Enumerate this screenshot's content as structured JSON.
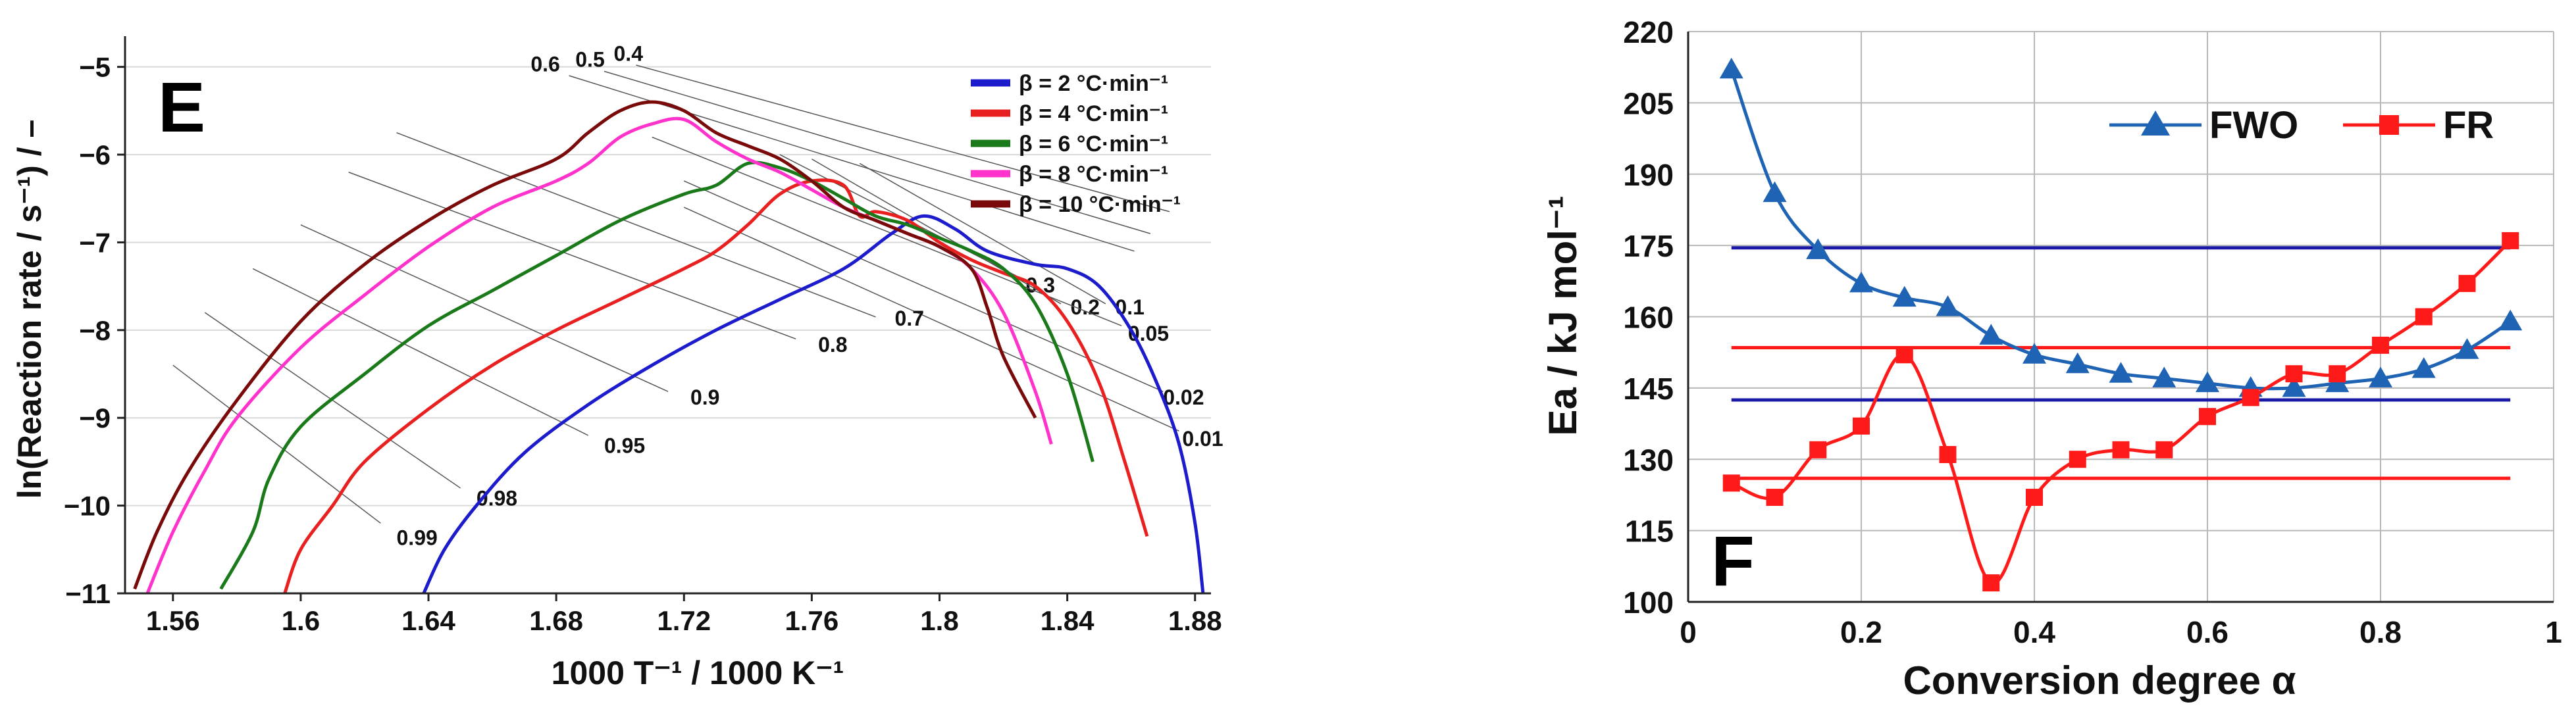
{
  "chart_data": [
    {
      "type": "line",
      "panel_label": "E",
      "xlabel": "1000 T⁻¹ / 1000 K⁻¹",
      "ylabel": "ln(Reaction rate / s⁻¹) / –",
      "xlim": [
        1.545,
        1.885
      ],
      "ylim": [
        -11,
        -4.65
      ],
      "x_ticks": [
        1.56,
        1.6,
        1.64,
        1.68,
        1.72,
        1.76,
        1.8,
        1.84,
        1.88
      ],
      "x_tick_labels": [
        "1.56",
        "1.6",
        "1.64",
        "1.68",
        "1.72",
        "1.76",
        "1.8",
        "1.84",
        "1.88"
      ],
      "y_ticks": [
        -11,
        -10,
        -9,
        -8,
        -7,
        -6,
        -5
      ],
      "y_tick_labels": [
        "−11",
        "−10",
        "−9",
        "−8",
        "−7",
        "−6",
        "−5"
      ],
      "grid": "horizontal",
      "legend_position": "top-right",
      "series": [
        {
          "name": "β = 2 °C·min⁻¹",
          "color": "#1c1ccc",
          "points": [
            [
              1.6385,
              -11
            ],
            [
              1.645,
              -10.5
            ],
            [
              1.655,
              -10.0
            ],
            [
              1.67,
              -9.4
            ],
            [
              1.69,
              -8.85
            ],
            [
              1.71,
              -8.4
            ],
            [
              1.73,
              -8.0
            ],
            [
              1.75,
              -7.65
            ],
            [
              1.77,
              -7.3
            ],
            [
              1.785,
              -6.9
            ],
            [
              1.795,
              -6.7
            ],
            [
              1.805,
              -6.85
            ],
            [
              1.815,
              -7.1
            ],
            [
              1.83,
              -7.25
            ],
            [
              1.84,
              -7.3
            ],
            [
              1.85,
              -7.5
            ],
            [
              1.86,
              -8.0
            ],
            [
              1.868,
              -8.6
            ],
            [
              1.875,
              -9.3
            ],
            [
              1.88,
              -10.2
            ],
            [
              1.8825,
              -11
            ]
          ]
        },
        {
          "name": "β = 4 °C·min⁻¹",
          "color": "#e82020",
          "points": [
            [
              1.595,
              -11
            ],
            [
              1.6,
              -10.5
            ],
            [
              1.61,
              -10.0
            ],
            [
              1.62,
              -9.5
            ],
            [
              1.64,
              -8.9
            ],
            [
              1.66,
              -8.4
            ],
            [
              1.68,
              -8.0
            ],
            [
              1.7,
              -7.65
            ],
            [
              1.72,
              -7.3
            ],
            [
              1.73,
              -7.1
            ],
            [
              1.74,
              -6.8
            ],
            [
              1.75,
              -6.45
            ],
            [
              1.76,
              -6.3
            ],
            [
              1.77,
              -6.35
            ],
            [
              1.775,
              -6.7
            ],
            [
              1.78,
              -6.65
            ],
            [
              1.79,
              -6.75
            ],
            [
              1.8,
              -7.0
            ],
            [
              1.81,
              -7.2
            ],
            [
              1.82,
              -7.35
            ],
            [
              1.83,
              -7.5
            ],
            [
              1.84,
              -7.9
            ],
            [
              1.85,
              -8.6
            ],
            [
              1.858,
              -9.5
            ],
            [
              1.865,
              -10.35
            ]
          ]
        },
        {
          "name": "β = 6 °C·min⁻¹",
          "color": "#1a7a1a",
          "points": [
            [
              1.575,
              -10.95
            ],
            [
              1.585,
              -10.3
            ],
            [
              1.59,
              -9.7
            ],
            [
              1.6,
              -9.1
            ],
            [
              1.62,
              -8.5
            ],
            [
              1.64,
              -7.95
            ],
            [
              1.66,
              -7.55
            ],
            [
              1.68,
              -7.15
            ],
            [
              1.7,
              -6.75
            ],
            [
              1.72,
              -6.45
            ],
            [
              1.73,
              -6.35
            ],
            [
              1.74,
              -6.1
            ],
            [
              1.75,
              -6.15
            ],
            [
              1.76,
              -6.3
            ],
            [
              1.77,
              -6.5
            ],
            [
              1.78,
              -6.7
            ],
            [
              1.79,
              -6.8
            ],
            [
              1.8,
              -6.95
            ],
            [
              1.81,
              -7.1
            ],
            [
              1.82,
              -7.3
            ],
            [
              1.83,
              -7.7
            ],
            [
              1.84,
              -8.5
            ],
            [
              1.848,
              -9.5
            ]
          ]
        },
        {
          "name": "β = 8 °C·min⁻¹",
          "color": "#ff33cc",
          "points": [
            [
              1.552,
              -11
            ],
            [
              1.56,
              -10.3
            ],
            [
              1.57,
              -9.6
            ],
            [
              1.58,
              -9.0
            ],
            [
              1.6,
              -8.2
            ],
            [
              1.62,
              -7.6
            ],
            [
              1.64,
              -7.05
            ],
            [
              1.66,
              -6.6
            ],
            [
              1.68,
              -6.3
            ],
            [
              1.69,
              -6.1
            ],
            [
              1.7,
              -5.8
            ],
            [
              1.71,
              -5.65
            ],
            [
              1.72,
              -5.6
            ],
            [
              1.73,
              -5.85
            ],
            [
              1.74,
              -6.05
            ],
            [
              1.75,
              -6.2
            ],
            [
              1.76,
              -6.4
            ],
            [
              1.77,
              -6.6
            ],
            [
              1.78,
              -6.75
            ],
            [
              1.79,
              -6.9
            ],
            [
              1.8,
              -7.05
            ],
            [
              1.81,
              -7.3
            ],
            [
              1.82,
              -7.8
            ],
            [
              1.83,
              -8.7
            ],
            [
              1.835,
              -9.3
            ]
          ]
        },
        {
          "name": "β = 10 °C·min⁻¹",
          "color": "#7a0a0a",
          "points": [
            [
              1.548,
              -10.95
            ],
            [
              1.555,
              -10.3
            ],
            [
              1.565,
              -9.6
            ],
            [
              1.58,
              -8.8
            ],
            [
              1.6,
              -7.9
            ],
            [
              1.62,
              -7.25
            ],
            [
              1.64,
              -6.75
            ],
            [
              1.66,
              -6.35
            ],
            [
              1.68,
              -6.05
            ],
            [
              1.69,
              -5.75
            ],
            [
              1.7,
              -5.5
            ],
            [
              1.71,
              -5.4
            ],
            [
              1.72,
              -5.5
            ],
            [
              1.73,
              -5.75
            ],
            [
              1.74,
              -5.9
            ],
            [
              1.75,
              -6.05
            ],
            [
              1.76,
              -6.3
            ],
            [
              1.77,
              -6.6
            ],
            [
              1.78,
              -6.75
            ],
            [
              1.79,
              -6.9
            ],
            [
              1.8,
              -7.05
            ],
            [
              1.81,
              -7.3
            ],
            [
              1.815,
              -7.75
            ],
            [
              1.82,
              -8.3
            ],
            [
              1.83,
              -9.0
            ]
          ]
        }
      ],
      "iso_lines": [
        {
          "label": "0.4",
          "from": [
            1.705,
            -4.98
          ],
          "to": [
            1.872,
            -6.65
          ],
          "label_at": [
            1.698,
            -4.93
          ]
        },
        {
          "label": "0.5",
          "from": [
            1.695,
            -5.05
          ],
          "to": [
            1.866,
            -6.9
          ],
          "label_at": [
            1.686,
            -5.0
          ]
        },
        {
          "label": "0.6",
          "from": [
            1.684,
            -5.1
          ],
          "to": [
            1.861,
            -7.1
          ],
          "label_at": [
            1.672,
            -5.05
          ]
        },
        {
          "label": "0.3",
          "from": [
            1.75,
            -6.0
          ],
          "to": [
            1.825,
            -7.4
          ],
          "label_at": [
            1.827,
            -7.57
          ]
        },
        {
          "label": "0.2",
          "from": [
            1.76,
            -6.05
          ],
          "to": [
            1.838,
            -7.7
          ],
          "label_at": [
            1.841,
            -7.82
          ]
        },
        {
          "label": "0.1",
          "from": [
            1.775,
            -6.1
          ],
          "to": [
            1.852,
            -7.7
          ],
          "label_at": [
            1.855,
            -7.82
          ]
        },
        {
          "label": "0.05",
          "from": [
            1.71,
            -5.8
          ],
          "to": [
            1.857,
            -7.95
          ],
          "label_at": [
            1.859,
            -8.12
          ]
        },
        {
          "label": "0.02",
          "from": [
            1.72,
            -6.3
          ],
          "to": [
            1.87,
            -8.7
          ],
          "label_at": [
            1.87,
            -8.85
          ]
        },
        {
          "label": "0.01",
          "from": [
            1.72,
            -6.6
          ],
          "to": [
            1.875,
            -9.15
          ],
          "label_at": [
            1.876,
            -9.32
          ]
        },
        {
          "label": "0.7",
          "from": [
            1.63,
            -5.75
          ],
          "to": [
            1.78,
            -7.85
          ],
          "label_at": [
            1.786,
            -7.95
          ]
        },
        {
          "label": "0.8",
          "from": [
            1.615,
            -6.2
          ],
          "to": [
            1.755,
            -8.1
          ],
          "label_at": [
            1.762,
            -8.25
          ]
        },
        {
          "label": "0.9",
          "from": [
            1.6,
            -6.8
          ],
          "to": [
            1.715,
            -8.7
          ],
          "label_at": [
            1.722,
            -8.85
          ]
        },
        {
          "label": "0.95",
          "from": [
            1.585,
            -7.3
          ],
          "to": [
            1.69,
            -9.2
          ],
          "label_at": [
            1.695,
            -9.4
          ]
        },
        {
          "label": "0.98",
          "from": [
            1.57,
            -7.8
          ],
          "to": [
            1.65,
            -9.8
          ],
          "label_at": [
            1.655,
            -10.0
          ]
        },
        {
          "label": "0.99",
          "from": [
            1.56,
            -8.4
          ],
          "to": [
            1.625,
            -10.2
          ],
          "label_at": [
            1.63,
            -10.45
          ]
        }
      ]
    },
    {
      "type": "line",
      "panel_label": "F",
      "xlabel": "Conversion degree α",
      "ylabel": "Ea / kJ mol⁻¹",
      "xlim": [
        0,
        1
      ],
      "ylim": [
        100,
        220
      ],
      "x_ticks": [
        0,
        0.2,
        0.4,
        0.6,
        0.8,
        1
      ],
      "x_tick_labels": [
        "0",
        "0.2",
        "0.4",
        "0.6",
        "0.8",
        "1"
      ],
      "y_ticks": [
        100,
        115,
        130,
        145,
        160,
        175,
        190,
        205,
        220
      ],
      "y_tick_labels": [
        "100",
        "115",
        "130",
        "145",
        "160",
        "175",
        "190",
        "205",
        "220"
      ],
      "grid": "both",
      "legend_position": "top-right",
      "series": [
        {
          "name": "FWO",
          "color": "#1f63b4",
          "marker": "triangle",
          "x": [
            0.05,
            0.1,
            0.15,
            0.2,
            0.25,
            0.3,
            0.35,
            0.4,
            0.45,
            0.5,
            0.55,
            0.6,
            0.65,
            0.7,
            0.75,
            0.8,
            0.85,
            0.9,
            0.95
          ],
          "y": [
            212,
            186,
            174,
            167,
            164,
            162,
            156,
            152,
            150,
            148,
            147,
            146,
            145,
            145,
            146,
            147,
            149,
            153,
            159
          ]
        },
        {
          "name": "FR",
          "color": "#ff1a1a",
          "marker": "square",
          "x": [
            0.05,
            0.1,
            0.15,
            0.2,
            0.25,
            0.3,
            0.35,
            0.4,
            0.45,
            0.5,
            0.55,
            0.6,
            0.65,
            0.7,
            0.75,
            0.8,
            0.85,
            0.9,
            0.95
          ],
          "y": [
            125,
            122,
            132,
            137,
            152,
            131,
            104,
            122,
            130,
            132,
            132,
            139,
            143,
            148,
            148,
            154,
            160,
            167,
            176
          ]
        }
      ],
      "hlines": [
        {
          "y": 174.5,
          "color": "#1a1aa6"
        },
        {
          "y": 142.5,
          "color": "#1a1aa6"
        },
        {
          "y": 153.5,
          "color": "#ff1a1a"
        },
        {
          "y": 126,
          "color": "#ff1a1a"
        }
      ],
      "hline_xrange": [
        0.05,
        0.95
      ]
    }
  ]
}
